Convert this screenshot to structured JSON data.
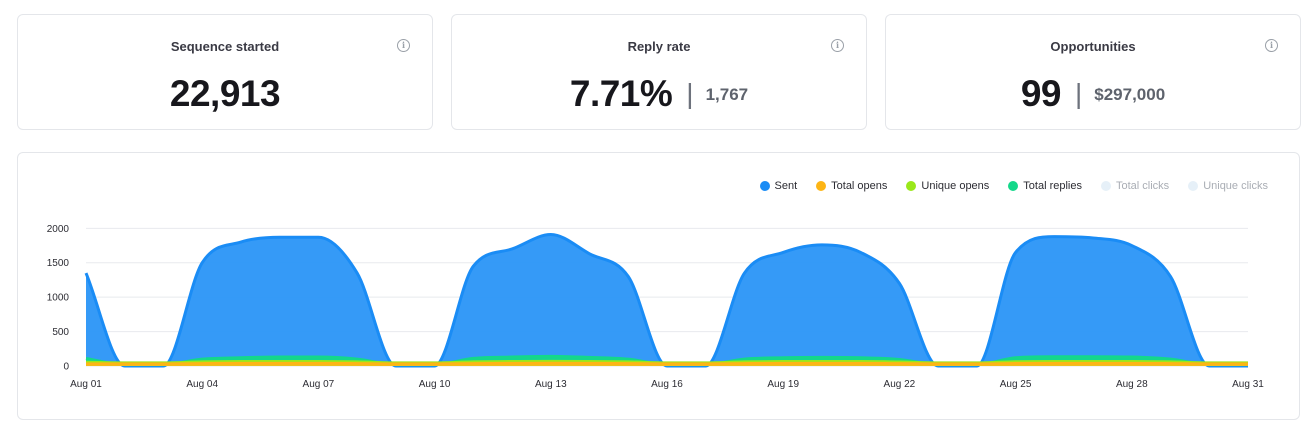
{
  "kpis": [
    {
      "title": "Sequence started",
      "value": "22,913",
      "sub": ""
    },
    {
      "title": "Reply rate",
      "value": "7.71%",
      "sub": "1,767"
    },
    {
      "title": "Opportunities",
      "value": "99",
      "sub": "$297,000"
    }
  ],
  "info_glyph": "i",
  "kpi_separator": "|",
  "chart_data": {
    "type": "area",
    "x_ticks": [
      "Aug 01",
      "Aug 04",
      "Aug 07",
      "Aug 10",
      "Aug 13",
      "Aug 16",
      "Aug 19",
      "Aug 22",
      "Aug 25",
      "Aug 28",
      "Aug 31"
    ],
    "y_ticks": [
      0,
      500,
      1000,
      1500,
      2000
    ],
    "ylim": [
      0,
      2150
    ],
    "x": [
      "Aug 01",
      "Aug 02",
      "Aug 03",
      "Aug 04",
      "Aug 05",
      "Aug 06",
      "Aug 07",
      "Aug 08",
      "Aug 09",
      "Aug 10",
      "Aug 11",
      "Aug 12",
      "Aug 13",
      "Aug 14",
      "Aug 15",
      "Aug 16",
      "Aug 17",
      "Aug 18",
      "Aug 19",
      "Aug 20",
      "Aug 21",
      "Aug 22",
      "Aug 23",
      "Aug 24",
      "Aug 25",
      "Aug 26",
      "Aug 27",
      "Aug 28",
      "Aug 29",
      "Aug 30",
      "Aug 31"
    ],
    "legend_position": "top-right",
    "grid": true,
    "series": [
      {
        "name": "Sent",
        "color": "#1a8cf5",
        "fill": "#2a95f7",
        "active": true,
        "values": [
          1350,
          0,
          0,
          1500,
          1800,
          1870,
          1870,
          1350,
          0,
          0,
          1450,
          1700,
          1910,
          1630,
          1300,
          0,
          0,
          1350,
          1650,
          1760,
          1650,
          1200,
          0,
          0,
          1650,
          1880,
          1860,
          1750,
          1300,
          0,
          0
        ]
      },
      {
        "name": "Total replies",
        "color": "#14d88a",
        "fill": "#14d88a",
        "active": true,
        "values": [
          110,
          20,
          20,
          100,
          120,
          130,
          130,
          100,
          20,
          20,
          110,
          130,
          140,
          125,
          100,
          20,
          20,
          100,
          120,
          125,
          120,
          95,
          20,
          20,
          120,
          135,
          135,
          130,
          100,
          20,
          20
        ]
      },
      {
        "name": "Unique opens",
        "color": "#9ae81a",
        "fill": "#9ae81a",
        "active": true,
        "values": [
          55,
          45,
          45,
          60,
          65,
          65,
          65,
          60,
          45,
          45,
          60,
          65,
          68,
          65,
          60,
          45,
          45,
          60,
          65,
          65,
          65,
          58,
          45,
          45,
          62,
          66,
          66,
          65,
          60,
          45,
          45
        ]
      },
      {
        "name": "Total opens",
        "color": "#fdb515",
        "fill": "#f2bf1e",
        "active": true,
        "values": [
          30,
          30,
          30,
          35,
          38,
          38,
          38,
          35,
          30,
          30,
          35,
          38,
          40,
          38,
          35,
          30,
          30,
          35,
          38,
          38,
          38,
          34,
          30,
          30,
          36,
          38,
          38,
          38,
          35,
          30,
          30
        ]
      }
    ],
    "legend": [
      {
        "name": "Sent",
        "color": "#1a8cf5",
        "active": true
      },
      {
        "name": "Total opens",
        "color": "#fdb515",
        "active": true
      },
      {
        "name": "Unique opens",
        "color": "#9ae81a",
        "active": true
      },
      {
        "name": "Total replies",
        "color": "#14d88a",
        "active": true
      },
      {
        "name": "Total clicks",
        "color": "#e6f0f8",
        "active": false
      },
      {
        "name": "Unique clicks",
        "color": "#e6f0f8",
        "active": false
      }
    ]
  }
}
